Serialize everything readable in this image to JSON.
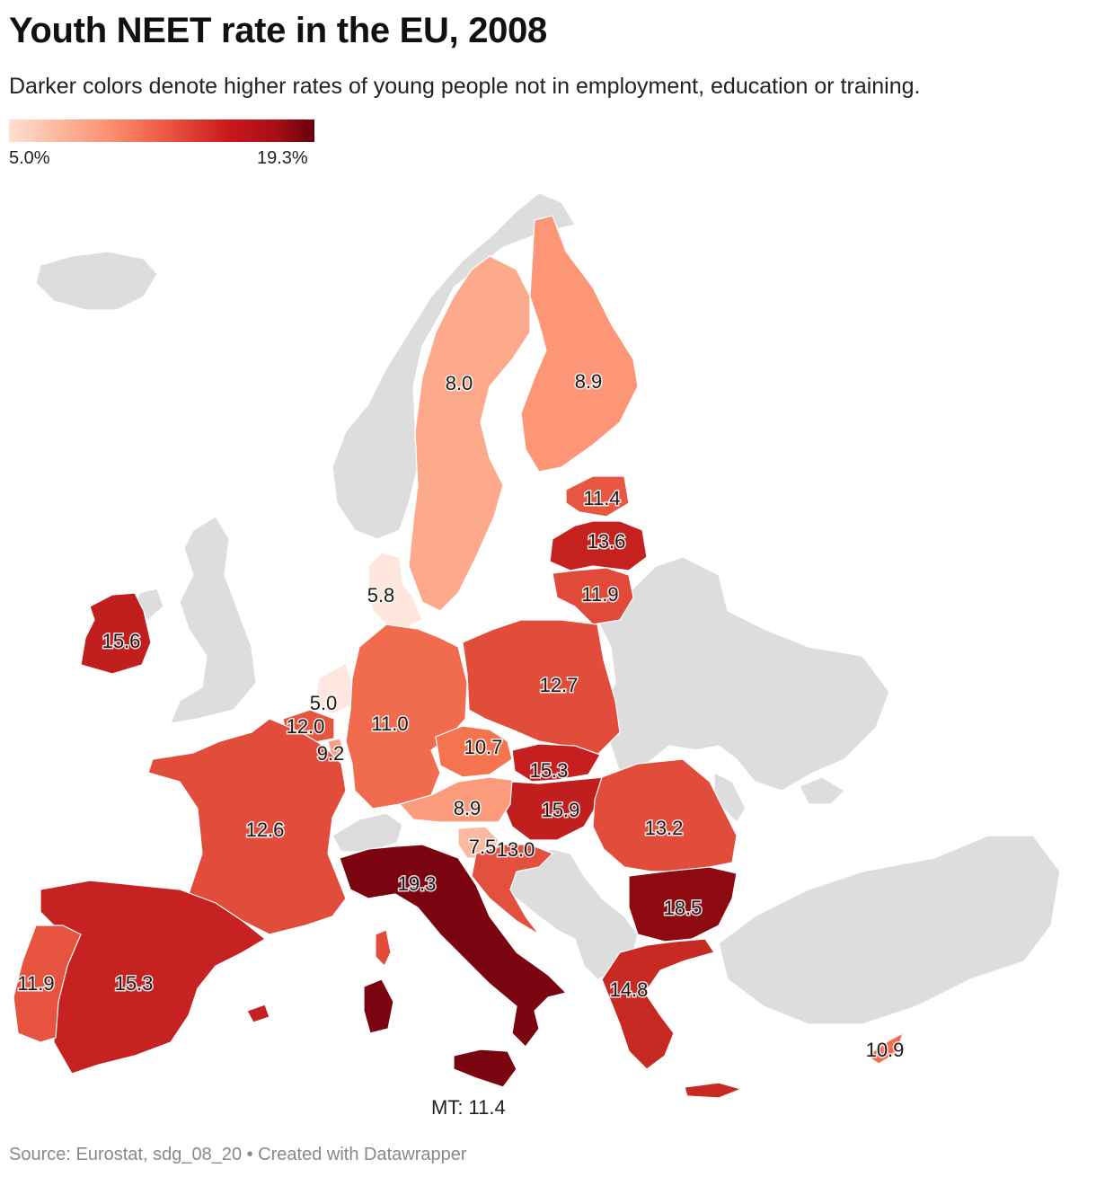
{
  "title": "Youth NEET rate in the EU, 2008",
  "subtitle": "Darker colors denote higher rates of young people not in employment, education or training.",
  "legend": {
    "min_label": "5.0%",
    "max_label": "19.3%",
    "min": 5.0,
    "max": 19.3
  },
  "annotation": "MT: 11.4",
  "source": "Source: Eurostat, sdg_08_20 • Created with Datawrapper",
  "map_data": {
    "type": "choropleth",
    "colors": {
      "low": "#fee0d2",
      "high": "#67000d",
      "no_data": "#dddddd"
    },
    "regions": [
      {
        "id": "SE",
        "value": 8.0,
        "label": "8.0"
      },
      {
        "id": "FI",
        "value": 8.9,
        "label": "8.9"
      },
      {
        "id": "EE",
        "value": 11.4,
        "label": "11.4"
      },
      {
        "id": "LV",
        "value": 13.6,
        "label": "13.6"
      },
      {
        "id": "LT",
        "value": 11.9,
        "label": "11.9"
      },
      {
        "id": "DK",
        "value": 5.8,
        "label": "5.8"
      },
      {
        "id": "IE",
        "value": 15.6,
        "label": "15.6"
      },
      {
        "id": "NL",
        "value": 5.0,
        "label": "5.0"
      },
      {
        "id": "BE",
        "value": 12.0,
        "label": "12.0"
      },
      {
        "id": "LU",
        "value": 9.2,
        "label": "9.2"
      },
      {
        "id": "DE",
        "value": 11.0,
        "label": "11.0"
      },
      {
        "id": "PL",
        "value": 12.7,
        "label": "12.7"
      },
      {
        "id": "CZ",
        "value": 10.7,
        "label": "10.7"
      },
      {
        "id": "SK",
        "value": 15.3,
        "label": "15.3"
      },
      {
        "id": "HU",
        "value": 15.9,
        "label": "15.9"
      },
      {
        "id": "AT",
        "value": 8.9,
        "label": "8.9"
      },
      {
        "id": "SI",
        "value": 7.5,
        "label": "7.5"
      },
      {
        "id": "HR",
        "value": 13.0,
        "label": "13.0"
      },
      {
        "id": "RO",
        "value": 13.2,
        "label": "13.2"
      },
      {
        "id": "BG",
        "value": 18.5,
        "label": "18.5"
      },
      {
        "id": "FR",
        "value": 12.6,
        "label": "12.6"
      },
      {
        "id": "IT",
        "value": 19.3,
        "label": "19.3"
      },
      {
        "id": "ES",
        "value": 15.3,
        "label": "15.3"
      },
      {
        "id": "PT",
        "value": 11.9,
        "label": "11.9"
      },
      {
        "id": "GR",
        "value": 14.8,
        "label": "14.8"
      },
      {
        "id": "CY",
        "value": 10.9,
        "label": "10.9"
      },
      {
        "id": "MT",
        "value": 11.4,
        "label": ""
      }
    ]
  }
}
